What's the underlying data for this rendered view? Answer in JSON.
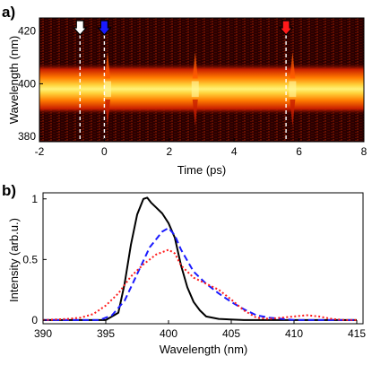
{
  "panel_a": {
    "label": "a)",
    "xlabel": "Time (ps)",
    "ylabel": "Wavelength (nm)"
  },
  "panel_b": {
    "label": "b)",
    "xlabel": "Wavelength (nm)",
    "ylabel": "Intensity  (arb.u.)"
  },
  "colors": {
    "black_curve": "#000000",
    "blue_curve": "#1a1aff",
    "red_curve": "#ff1a1a",
    "map_background": "#2a0000",
    "map_band_core": "#fff27a",
    "map_band_edge": "#ff7a00"
  },
  "chart_data": [
    {
      "type": "heatmap",
      "title": "",
      "xlabel": "Time (ps)",
      "ylabel": "Wavelength (nm)",
      "xlim": [
        -2,
        8
      ],
      "ylim": [
        378,
        425
      ],
      "x_ticks": [
        -2,
        0,
        2,
        4,
        6,
        8
      ],
      "y_ticks": [
        380,
        400,
        420
      ],
      "band_center_nm": 398,
      "band_halfwidth_nm": 4.5,
      "markers": [
        {
          "time_ps": -0.75,
          "arrow_color": "#ffffff"
        },
        {
          "time_ps": 0.0,
          "arrow_color": "#1a1aff"
        },
        {
          "time_ps": 5.6,
          "arrow_color": "#ff1a1a"
        }
      ],
      "features_time_ps": [
        0.1,
        2.8,
        5.8
      ],
      "grid": false
    },
    {
      "type": "line",
      "title": "",
      "xlabel": "Wavelength (nm)",
      "ylabel": "Intensity  (arb.u.)",
      "xlim": [
        390,
        415.5
      ],
      "ylim": [
        -0.03,
        1.05
      ],
      "x_ticks": [
        390,
        395,
        400,
        405,
        410,
        415
      ],
      "y_ticks": [
        0,
        0.5,
        1
      ],
      "y_tick_labels": [
        "0",
        "0.5",
        "1"
      ],
      "grid": false,
      "series": [
        {
          "color": "#000000",
          "style": "solid",
          "x": [
            390,
            395,
            396,
            396.5,
            397,
            397.5,
            398,
            398.3,
            398.6,
            399,
            399.5,
            400,
            400.5,
            401,
            401.5,
            402,
            402.5,
            403,
            404,
            406,
            415
          ],
          "y": [
            0,
            0,
            0.06,
            0.3,
            0.62,
            0.87,
            1.0,
            1.01,
            0.97,
            0.93,
            0.88,
            0.8,
            0.68,
            0.45,
            0.27,
            0.15,
            0.08,
            0.03,
            0.01,
            0,
            0
          ]
        },
        {
          "color": "#1a1aff",
          "style": "dashed",
          "x": [
            390,
            394.5,
            395.5,
            396.5,
            397.5,
            398.5,
            399.5,
            400,
            400.5,
            401,
            402,
            403,
            404,
            405,
            406,
            407,
            408,
            410,
            415
          ],
          "y": [
            0,
            0,
            0.04,
            0.16,
            0.38,
            0.6,
            0.73,
            0.76,
            0.7,
            0.58,
            0.4,
            0.3,
            0.22,
            0.15,
            0.09,
            0.04,
            0.02,
            0,
            0
          ]
        },
        {
          "color": "#ff1a1a",
          "style": "dotted",
          "x": [
            390,
            392,
            393,
            394,
            395,
            396,
            397,
            398,
            399,
            400,
            400.5,
            401,
            402,
            403,
            404,
            405,
            406,
            407,
            408,
            409,
            410,
            411,
            412,
            413,
            414,
            415
          ],
          "y": [
            0,
            0.01,
            0.02,
            0.05,
            0.12,
            0.22,
            0.36,
            0.46,
            0.54,
            0.58,
            0.55,
            0.45,
            0.35,
            0.3,
            0.25,
            0.17,
            0.08,
            0.02,
            0.01,
            0.02,
            0.03,
            0.04,
            0.03,
            0.01,
            0,
            0
          ]
        }
      ]
    }
  ]
}
